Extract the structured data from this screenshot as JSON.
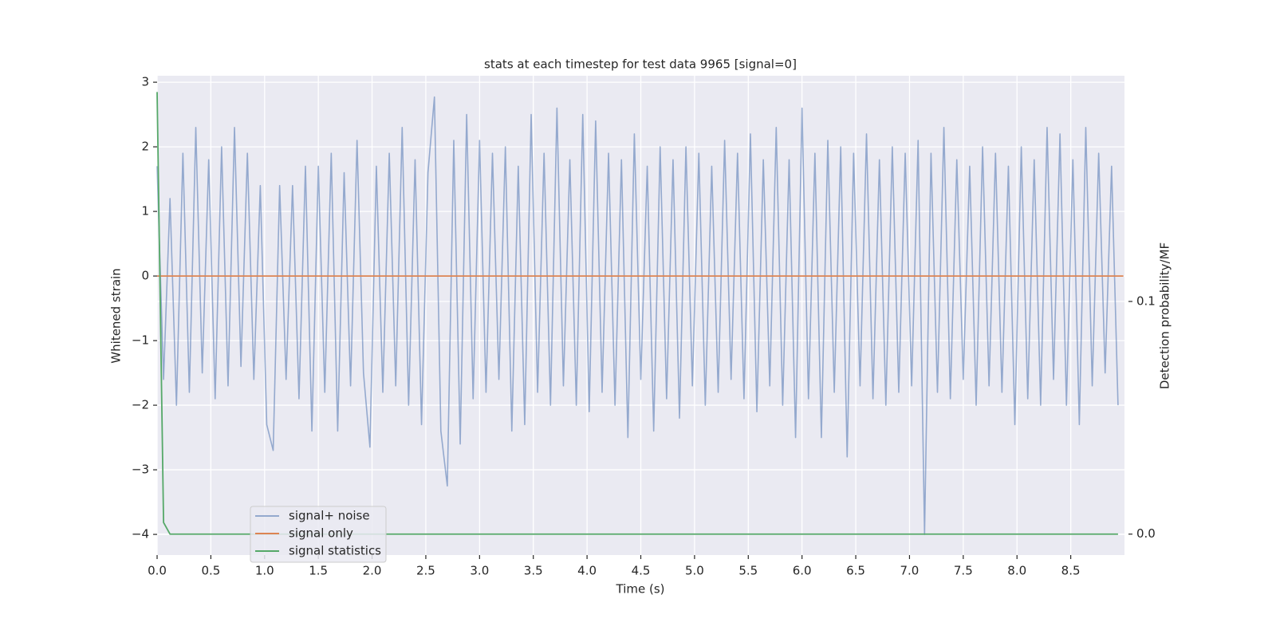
{
  "chart_data": {
    "type": "line",
    "title": "stats at each timestep for test data 9965 [signal=0]",
    "xlabel": "Time (s)",
    "ylabel": "Whitened strain",
    "y2label": "Detection probability/MF",
    "xlim": [
      0,
      9.0
    ],
    "ylim": [
      -4.32,
      3.1
    ],
    "y2lim": [
      -0.009,
      0.197
    ],
    "xticks": [
      {
        "value": 0,
        "label": "0.0"
      },
      0.5,
      {
        "value": 1,
        "label": "1.0"
      },
      1.5,
      {
        "value": 2,
        "label": "2.0"
      },
      2.5,
      {
        "value": 3,
        "label": "3.0"
      },
      3.5,
      {
        "value": 4,
        "label": "4.0"
      },
      4.5,
      {
        "value": 5,
        "label": "5.0"
      },
      5.5,
      {
        "value": 6,
        "label": "6.0"
      },
      6.5,
      {
        "value": 7,
        "label": "7.0"
      },
      7.5,
      {
        "value": 8,
        "label": "8.0"
      },
      8.5
    ],
    "yticks": [
      {
        "value": -4,
        "label": "−4"
      },
      {
        "value": -3,
        "label": "−3"
      },
      {
        "value": -2,
        "label": "−2"
      },
      {
        "value": -1,
        "label": "−1"
      },
      0,
      1,
      2,
      3
    ],
    "y2ticks": [
      {
        "value": 0,
        "label": "0.0"
      },
      0.1
    ],
    "grid": true,
    "series": [
      {
        "name": "signal+ noise",
        "color": "#4c72b0",
        "x": [
          0.0,
          0.06,
          0.12,
          0.18,
          0.24,
          0.3,
          0.36,
          0.42,
          0.48,
          0.54,
          0.6,
          0.66,
          0.72,
          0.78,
          0.84,
          0.9,
          0.96,
          1.02,
          1.08,
          1.14,
          1.2,
          1.26,
          1.32,
          1.38,
          1.44,
          1.5,
          1.56,
          1.62,
          1.68,
          1.74,
          1.8,
          1.86,
          1.92,
          1.98,
          2.04,
          2.1,
          2.16,
          2.22,
          2.28,
          2.34,
          2.4,
          2.46,
          2.52,
          2.58,
          2.64,
          2.7,
          2.76,
          2.82,
          2.88,
          2.94,
          3.0,
          3.06,
          3.12,
          3.18,
          3.24,
          3.3,
          3.36,
          3.42,
          3.48,
          3.54,
          3.6,
          3.66,
          3.72,
          3.78,
          3.84,
          3.9,
          3.96,
          4.02,
          4.08,
          4.14,
          4.2,
          4.26,
          4.32,
          4.38,
          4.44,
          4.5,
          4.56,
          4.62,
          4.68,
          4.74,
          4.8,
          4.86,
          4.92,
          4.98,
          5.04,
          5.1,
          5.16,
          5.22,
          5.28,
          5.34,
          5.4,
          5.46,
          5.52,
          5.58,
          5.64,
          5.7,
          5.76,
          5.82,
          5.88,
          5.94,
          6.0,
          6.06,
          6.12,
          6.18,
          6.24,
          6.3,
          6.36,
          6.42,
          6.48,
          6.54,
          6.6,
          6.66,
          6.72,
          6.78,
          6.84,
          6.9,
          6.96,
          7.02,
          7.08,
          7.14,
          7.2,
          7.26,
          7.32,
          7.38,
          7.44,
          7.5,
          7.56,
          7.62,
          7.68,
          7.74,
          7.8,
          7.86,
          7.92,
          7.98,
          8.04,
          8.1,
          8.16,
          8.22,
          8.28,
          8.34,
          8.4,
          8.46,
          8.52,
          8.58,
          8.64,
          8.7,
          8.76,
          8.82,
          8.88,
          8.94
        ],
        "values": [
          1.7,
          -1.6,
          1.2,
          -2.0,
          1.9,
          -1.8,
          2.3,
          -1.5,
          1.8,
          -1.9,
          2.0,
          -1.7,
          2.3,
          -1.4,
          1.9,
          -1.6,
          1.4,
          -2.3,
          -2.7,
          1.4,
          -1.6,
          1.4,
          -1.9,
          1.7,
          -2.4,
          1.7,
          -1.8,
          1.9,
          -2.4,
          1.6,
          -1.7,
          2.1,
          -1.5,
          -2.65,
          1.7,
          -1.8,
          1.9,
          -1.7,
          2.3,
          -2.0,
          1.8,
          -2.3,
          1.6,
          2.77,
          -2.4,
          -3.25,
          2.1,
          -2.6,
          2.5,
          -1.9,
          2.1,
          -1.8,
          1.9,
          -1.6,
          2.0,
          -2.4,
          1.7,
          -2.3,
          2.5,
          -1.8,
          1.9,
          -2.0,
          2.6,
          -1.7,
          1.8,
          -2.0,
          2.5,
          -2.1,
          2.4,
          -1.8,
          1.9,
          -2.0,
          1.8,
          -2.5,
          2.2,
          -1.6,
          1.7,
          -2.4,
          2.0,
          -1.9,
          1.8,
          -2.2,
          2.0,
          -1.7,
          1.9,
          -2.0,
          1.7,
          -1.8,
          2.1,
          -1.6,
          1.9,
          -1.9,
          2.2,
          -2.1,
          1.8,
          -1.7,
          2.3,
          -2.0,
          1.8,
          -2.5,
          2.6,
          -1.9,
          1.9,
          -2.5,
          2.1,
          -1.8,
          2.0,
          -2.8,
          1.9,
          -1.7,
          2.2,
          -1.9,
          1.8,
          -2.0,
          2.0,
          -1.8,
          1.9,
          -1.7,
          2.1,
          -4.0,
          1.9,
          -1.8,
          2.3,
          -1.9,
          1.8,
          -1.6,
          1.7,
          -2.0,
          2.0,
          -1.7,
          1.9,
          -1.8,
          1.7,
          -2.3,
          2.0,
          -1.9,
          1.8,
          -2.0,
          2.3,
          -1.6,
          2.2,
          -2.0,
          1.8,
          -2.3,
          2.3,
          -1.7,
          1.9,
          -1.5,
          1.7,
          -2.0
        ]
      },
      {
        "name": "signal only",
        "color": "#dd8452",
        "x": [
          0,
          8.99
        ],
        "values": [
          0,
          0
        ]
      },
      {
        "name": "signal statistics",
        "color": "#55a868",
        "axis": "y2",
        "x": [
          0,
          0.06,
          0.12,
          8.94
        ],
        "values": [
          0.19,
          0.005,
          0,
          0
        ]
      }
    ]
  }
}
